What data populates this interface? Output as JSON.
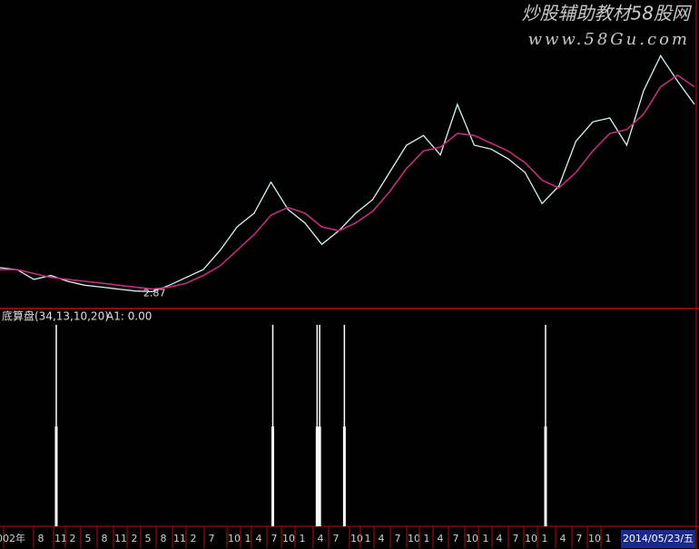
{
  "chart_data": [
    {
      "type": "line",
      "watermark": "炒股辅助教材58股网",
      "watermark_url": "www.58Gu.com",
      "annotation": "2.87",
      "annotation_index": 9,
      "ylim": [
        2,
        16
      ],
      "series": [
        {
          "color": "#d8f4f4",
          "values": [
            4.1,
            4.0,
            3.5,
            3.7,
            3.4,
            3.2,
            3.1,
            3.0,
            2.9,
            2.87,
            3.2,
            3.6,
            4.0,
            5.0,
            6.2,
            6.9,
            8.5,
            7.1,
            6.4,
            5.3,
            6.0,
            6.9,
            7.6,
            9.0,
            10.4,
            10.9,
            9.9,
            12.5,
            10.4,
            10.2,
            9.7,
            9.0,
            7.4,
            8.3,
            10.6,
            11.6,
            11.8,
            10.4,
            13.2,
            15.0,
            13.7,
            12.5
          ]
        },
        {
          "color": "#c0307a",
          "values": [
            4.0,
            4.0,
            3.8,
            3.6,
            3.5,
            3.4,
            3.3,
            3.2,
            3.1,
            3.0,
            3.1,
            3.3,
            3.7,
            4.2,
            5.0,
            5.8,
            6.8,
            7.2,
            6.9,
            6.2,
            6.0,
            6.4,
            7.0,
            8.0,
            9.2,
            10.1,
            10.3,
            11.0,
            10.9,
            10.5,
            10.1,
            9.5,
            8.6,
            8.2,
            9.0,
            10.1,
            11.0,
            11.2,
            12.0,
            13.4,
            14.0,
            13.4
          ]
        }
      ]
    },
    {
      "type": "spike",
      "title": "底算盘(34,13,10,20)",
      "indicator": "A1: 0.00",
      "xlim": [
        0,
        41
      ],
      "ylim": [
        0,
        1
      ],
      "color": "#ffffff",
      "x": [
        3.3,
        16.0,
        18.6,
        18.75,
        20.2,
        32.0
      ],
      "values": [
        1,
        1,
        1,
        1,
        1,
        1
      ],
      "categories": [
        "002年",
        "8",
        "11",
        "2",
        "5",
        "8",
        "11",
        "2",
        "5",
        "8",
        "11",
        "2",
        "7",
        "10",
        "1",
        "4",
        "7",
        "10",
        "1",
        "4",
        "7",
        "10",
        "1",
        "4",
        "7",
        "10",
        "1",
        "4",
        "7",
        "10",
        "1",
        "4",
        "7",
        "10",
        "1",
        "4",
        "7",
        "10",
        "1"
      ],
      "date": "2014/05/23/五"
    }
  ]
}
